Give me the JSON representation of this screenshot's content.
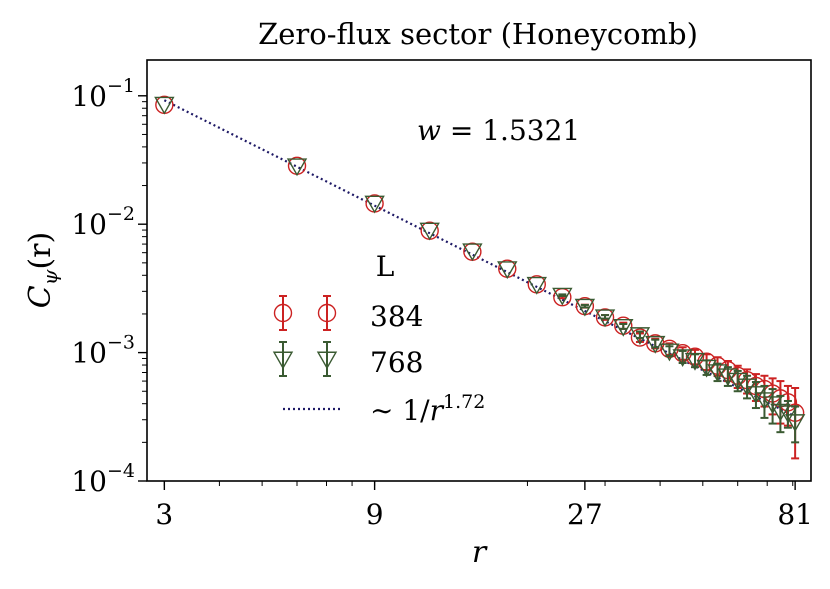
{
  "chart_data": {
    "type": "scatter",
    "title": "Zero-flux sector (Honeycomb)",
    "xlabel": "r",
    "ylabel": {
      "main": "C",
      "sub": "ψ",
      "tail": "(r)"
    },
    "xscale": "log3",
    "yscale": "log10",
    "xlim": [
      2.74,
      88
    ],
    "ylim": [
      0.0001,
      0.19
    ],
    "x_ticks": [
      "3",
      "9",
      "27",
      "81"
    ],
    "x_tick_values": [
      3,
      9,
      27,
      81
    ],
    "y_ticks": [
      {
        "base": "10",
        "exp": "−1",
        "value": 0.1
      },
      {
        "base": "10",
        "exp": "−2",
        "value": 0.01
      },
      {
        "base": "10",
        "exp": "−3",
        "value": 0.001
      },
      {
        "base": "10",
        "exp": "−4",
        "value": 0.0001
      }
    ],
    "annotation": {
      "lhs": "w",
      "rhs": " = 1.5321"
    },
    "legend": {
      "title": "L",
      "position": "center-left",
      "fit_label": {
        "prefix": "∼ 1/",
        "var": "r",
        "exp": "1.72"
      }
    },
    "fit": {
      "amplitude": 0.0923,
      "exponent": 1.72,
      "x_range": [
        3,
        81
      ],
      "color": "#1f1a66",
      "style": "dotted"
    },
    "series": [
      {
        "name": "384",
        "marker": "circle",
        "color": "#cc2222",
        "x": [
          3,
          6,
          9,
          12,
          15,
          18,
          21,
          24,
          27,
          30,
          33,
          36,
          39,
          42,
          45,
          48,
          51,
          54,
          57,
          60,
          63,
          66,
          69,
          72,
          75,
          78,
          81
        ],
        "y": [
          0.085,
          0.0285,
          0.0145,
          0.0089,
          0.0061,
          0.0045,
          0.0034,
          0.0027,
          0.0023,
          0.00188,
          0.00162,
          0.00131,
          0.00118,
          0.00107,
          0.00099,
          0.00093,
          0.00085,
          0.00079,
          0.00073,
          0.00066,
          0.00061,
          0.00055,
          0.00052,
          0.00048,
          0.00044,
          0.00041,
          0.00034
        ],
        "err": [
          0,
          0,
          0,
          0,
          0,
          0,
          0,
          5e-05,
          6e-05,
          8e-05,
          9e-05,
          0.0001,
          0.0001,
          0.00011,
          0.00011,
          0.00012,
          0.00012,
          0.00013,
          0.00013,
          0.00013,
          0.00013,
          0.00013,
          0.00014,
          0.00015,
          0.00016,
          0.00014,
          0.00019
        ]
      },
      {
        "name": "768",
        "marker": "triangle_down",
        "color": "#3a5a32",
        "x": [
          3,
          6,
          9,
          12,
          15,
          18,
          21,
          24,
          27,
          30,
          33,
          36,
          39,
          42,
          45,
          48,
          51,
          54,
          57,
          60,
          63,
          66,
          69,
          72,
          75,
          78,
          81
        ],
        "y": [
          0.086,
          0.0285,
          0.0146,
          0.009,
          0.0062,
          0.0045,
          0.0034,
          0.0028,
          0.0023,
          0.0019,
          0.0016,
          0.00138,
          0.00118,
          0.00103,
          0.00093,
          0.00087,
          0.00077,
          0.00071,
          0.00066,
          0.00061,
          0.00055,
          0.00048,
          0.00043,
          0.0004,
          0.00035,
          0.00034,
          0.00029
        ],
        "err": [
          0,
          0,
          0,
          0,
          0,
          0,
          0,
          4e-05,
          5e-05,
          6e-05,
          7e-05,
          8e-05,
          8e-05,
          9e-05,
          0.0001,
          0.0001,
          0.0001,
          0.00011,
          0.00011,
          0.00011,
          0.00011,
          0.00011,
          0.00012,
          0.00012,
          0.00011,
          8e-05,
          9e-05
        ]
      }
    ]
  }
}
